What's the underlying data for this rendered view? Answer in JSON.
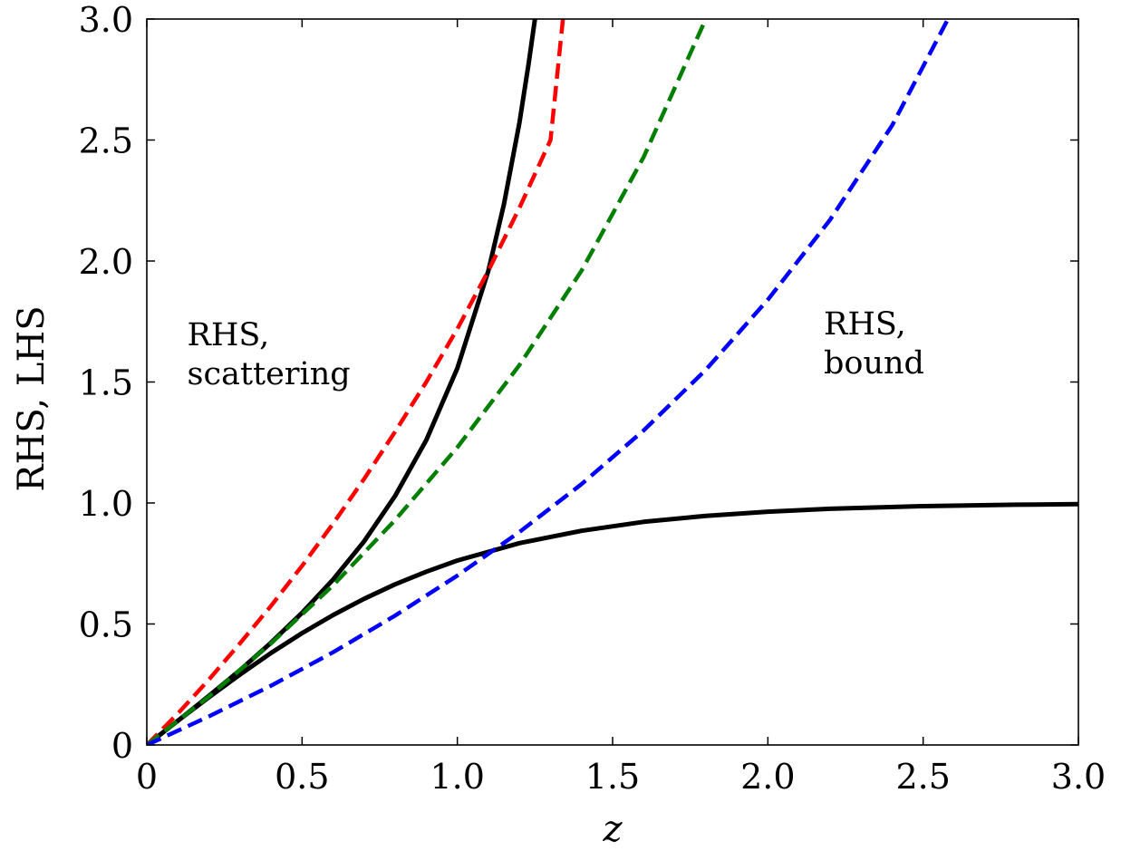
{
  "chart_data": {
    "type": "line",
    "title": "",
    "xlabel": "z",
    "ylabel": "RHS, LHS",
    "xlim": [
      0,
      3
    ],
    "ylim": [
      0,
      3
    ],
    "grid": false,
    "x_ticks": [
      0,
      0.5,
      1.0,
      1.5,
      2.0,
      2.5,
      3.0
    ],
    "x_tick_labels": [
      "0",
      "0.5",
      "1.0",
      "1.5",
      "2.0",
      "2.5",
      "3.0"
    ],
    "y_ticks": [
      0,
      0.5,
      1.0,
      1.5,
      2.0,
      2.5,
      3.0
    ],
    "y_tick_labels": [
      "0",
      "0.5",
      "1.0",
      "1.5",
      "2.0",
      "2.5",
      "3.0"
    ],
    "annotations": [
      {
        "lines": [
          "RHS,",
          "scattering"
        ],
        "x": 0.13,
        "y": 1.6
      },
      {
        "lines": [
          "RHS,",
          "bound"
        ],
        "x": 2.18,
        "y": 1.6
      }
    ],
    "series": [
      {
        "style": "solid",
        "color": "#000000",
        "x": [
          0,
          0.1,
          0.2,
          0.3,
          0.4,
          0.5,
          0.6,
          0.7,
          0.8,
          0.9,
          1.0,
          1.1,
          1.15,
          1.2,
          1.23,
          1.25
        ],
        "y": [
          0,
          0.1,
          0.203,
          0.309,
          0.423,
          0.546,
          0.684,
          0.842,
          1.03,
          1.26,
          1.557,
          1.96,
          2.235,
          2.572,
          2.82,
          3.0
        ]
      },
      {
        "style": "solid",
        "color": "#000000",
        "x": [
          0,
          0.1,
          0.2,
          0.3,
          0.4,
          0.5,
          0.6,
          0.7,
          0.8,
          0.9,
          1.0,
          1.2,
          1.4,
          1.6,
          1.8,
          2.0,
          2.2,
          2.5,
          2.8,
          3.0
        ],
        "y": [
          0,
          0.1,
          0.197,
          0.291,
          0.38,
          0.462,
          0.537,
          0.604,
          0.664,
          0.716,
          0.762,
          0.834,
          0.885,
          0.922,
          0.947,
          0.964,
          0.976,
          0.987,
          0.993,
          0.995
        ]
      },
      {
        "style": "dashed",
        "color": "#ff0000",
        "x": [
          0,
          0.1,
          0.2,
          0.3,
          0.4,
          0.5,
          0.6,
          0.7,
          0.8,
          0.9,
          1.0,
          1.1,
          1.2,
          1.3,
          1.34
        ],
        "y": [
          0,
          0.13,
          0.27,
          0.42,
          0.575,
          0.74,
          0.915,
          1.1,
          1.295,
          1.5,
          1.72,
          1.96,
          2.22,
          2.5,
          3.0
        ]
      },
      {
        "style": "dashed",
        "color": "#007f00",
        "x": [
          0,
          0.2,
          0.4,
          0.6,
          0.8,
          1.0,
          1.2,
          1.4,
          1.6,
          1.8
        ],
        "y": [
          0,
          0.2,
          0.42,
          0.66,
          0.93,
          1.23,
          1.57,
          1.96,
          2.43,
          3.0
        ]
      },
      {
        "style": "dashed",
        "color": "#0000ff",
        "x": [
          0,
          0.2,
          0.4,
          0.6,
          0.8,
          1.0,
          1.2,
          1.4,
          1.6,
          1.8,
          2.0,
          2.2,
          2.4,
          2.58
        ],
        "y": [
          0,
          0.118,
          0.245,
          0.383,
          0.535,
          0.7,
          0.88,
          1.078,
          1.3,
          1.55,
          1.84,
          2.17,
          2.56,
          3.0
        ]
      }
    ]
  }
}
